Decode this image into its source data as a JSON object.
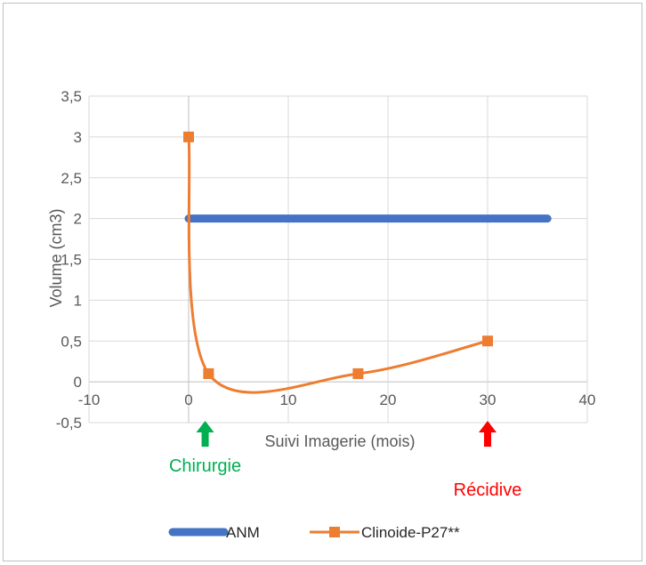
{
  "chart_data": {
    "type": "line",
    "title": "",
    "xlabel": "Suivi Imagerie (mois)",
    "ylabel": "Volume (cm3)",
    "xlim": [
      -10,
      40
    ],
    "ylim": [
      -0.5,
      3.5
    ],
    "x_ticks": [
      "-10",
      "0",
      "10",
      "20",
      "30",
      "40"
    ],
    "y_ticks": [
      "-0,5",
      "0",
      "0,5",
      "1",
      "1,5",
      "2",
      "2,5",
      "3",
      "3,5"
    ],
    "grid": true,
    "legend_position": "bottom",
    "series": [
      {
        "name": "ANM",
        "color": "#4472C4",
        "marker": "none",
        "x": [
          0,
          36
        ],
        "y": [
          2,
          2
        ]
      },
      {
        "name": "Clinoide-P27**",
        "color": "#ED7D31",
        "marker": "square",
        "smooth": true,
        "x": [
          0,
          2,
          17,
          30
        ],
        "y": [
          3,
          0.1,
          0.1,
          0.5
        ]
      }
    ],
    "annotations": [
      {
        "text": "Chirurgie",
        "color": "#00B050",
        "x": 1.3,
        "arrow": "up-green-arrow"
      },
      {
        "text": "Récidive",
        "color": "#FF0000",
        "x": 30,
        "arrow": "up-red-arrow"
      }
    ]
  }
}
